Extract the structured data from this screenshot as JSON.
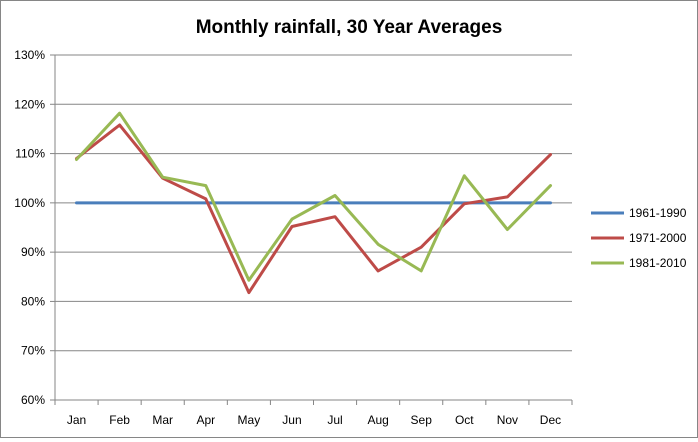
{
  "chart_data": {
    "type": "line",
    "title": "Monthly rainfall, 30 Year Averages",
    "xlabel": "",
    "ylabel": "",
    "categories": [
      "Jan",
      "Feb",
      "Mar",
      "Apr",
      "May",
      "Jun",
      "Jul",
      "Aug",
      "Sep",
      "Oct",
      "Nov",
      "Dec"
    ],
    "yticks": [
      "60%",
      "70%",
      "80%",
      "90%",
      "100%",
      "110%",
      "120%",
      "130%"
    ],
    "ylim": [
      60,
      130
    ],
    "ytick_step": 10,
    "grid": true,
    "legend_position": "right",
    "series": [
      {
        "name": "1961-1990",
        "color": "#4a7ebb",
        "values": [
          100,
          100,
          100,
          100,
          100,
          100,
          100,
          100,
          100,
          100,
          100,
          100
        ]
      },
      {
        "name": "1971-2000",
        "color": "#be4b48",
        "values": [
          109,
          115.8,
          105,
          100.8,
          81.8,
          95.2,
          97.2,
          86.2,
          91,
          99.8,
          101.2,
          109.8
        ]
      },
      {
        "name": "1981-2010",
        "color": "#98b954",
        "values": [
          108.8,
          118.2,
          105.2,
          103.5,
          84.3,
          96.7,
          101.5,
          91.6,
          86.2,
          105.5,
          94.6,
          103.5
        ]
      }
    ]
  }
}
